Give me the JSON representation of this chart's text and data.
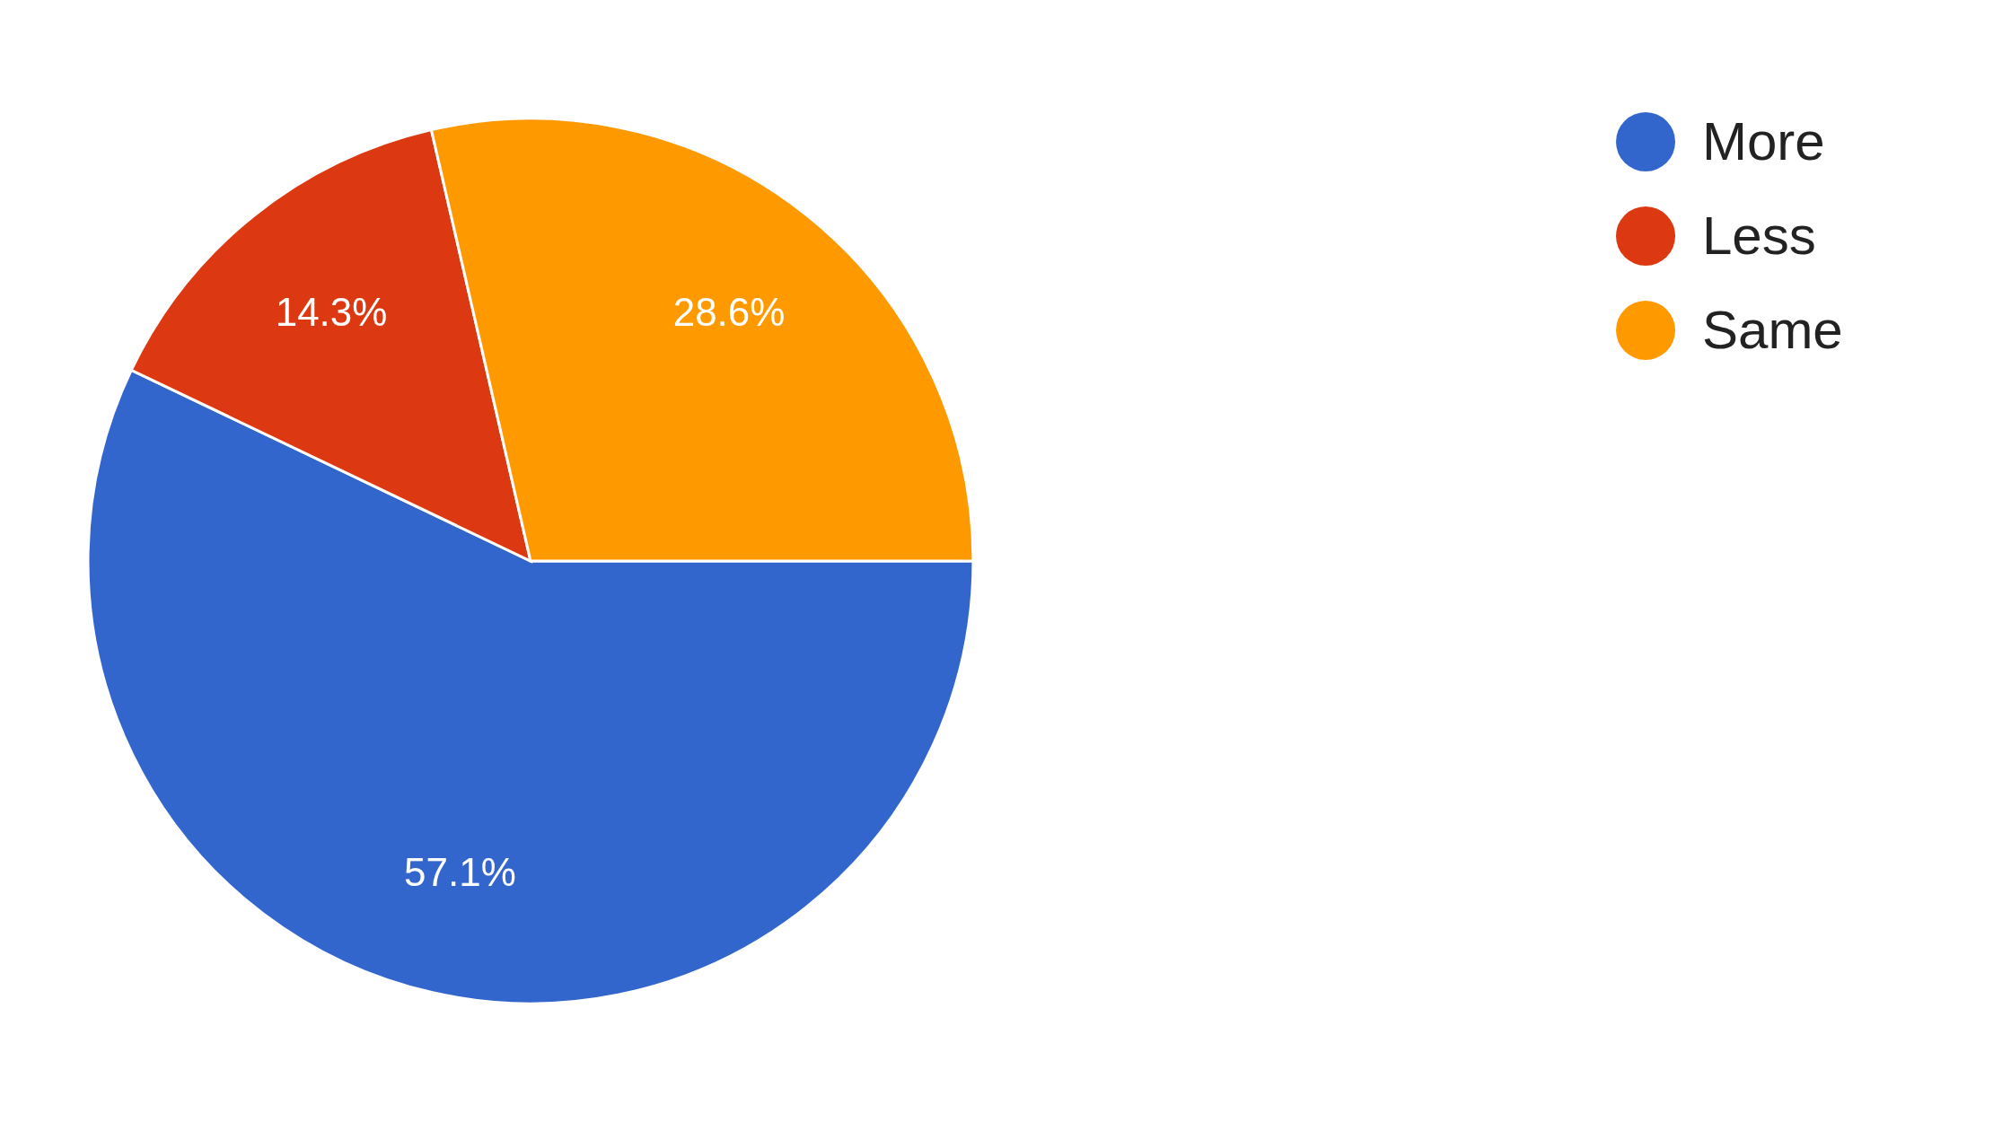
{
  "chart_data": {
    "type": "pie",
    "categories": [
      "More",
      "Less",
      "Same"
    ],
    "values": [
      57.1,
      14.3,
      28.6
    ],
    "colors": [
      "#3366cc",
      "#dc3912",
      "#ff9900"
    ],
    "value_labels": [
      "57.1%",
      "14.3%",
      "28.6%"
    ],
    "legend": "top right"
  }
}
